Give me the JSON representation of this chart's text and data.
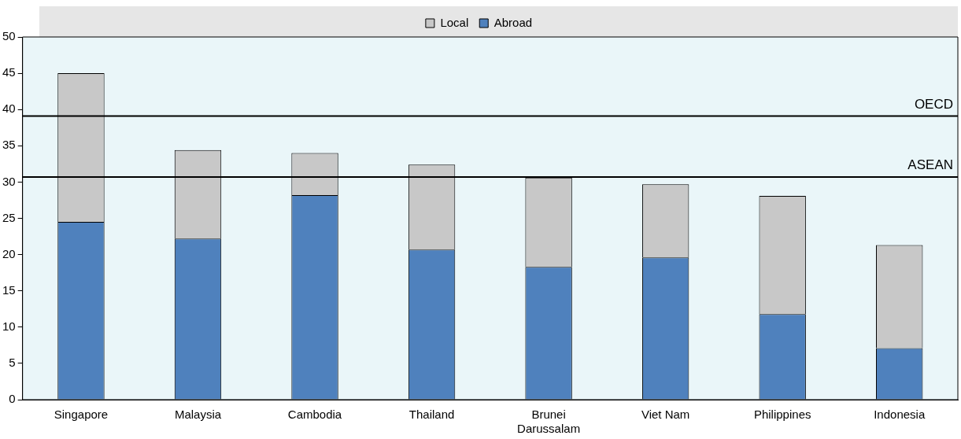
{
  "chart_data": {
    "type": "bar",
    "stacked": true,
    "categories": [
      "Singapore",
      "Malaysia",
      "Cambodia",
      "Thailand",
      "Brunei Darussalam",
      "Viet Nam",
      "Philippines",
      "Indonesia"
    ],
    "series": [
      {
        "name": "Abroad",
        "color": "#4f81bd",
        "values": [
          24.5,
          22.2,
          28.2,
          20.7,
          18.3,
          19.6,
          11.8,
          7.1
        ]
      },
      {
        "name": "Local",
        "color": "#c8c8c8",
        "values": [
          20.5,
          12.2,
          5.8,
          11.7,
          12.3,
          10.1,
          16.3,
          14.2
        ]
      }
    ],
    "ylim": [
      0,
      50
    ],
    "yticks": [
      0,
      5,
      10,
      15,
      20,
      25,
      30,
      35,
      40,
      45,
      50
    ],
    "grid": false,
    "legend": "top",
    "ref_lines": [
      {
        "axis": "y",
        "value": 39.1,
        "label": "OECD",
        "color": "#000000"
      },
      {
        "axis": "y",
        "value": 30.7,
        "label": "ASEAN",
        "color": "#000000"
      }
    ]
  }
}
